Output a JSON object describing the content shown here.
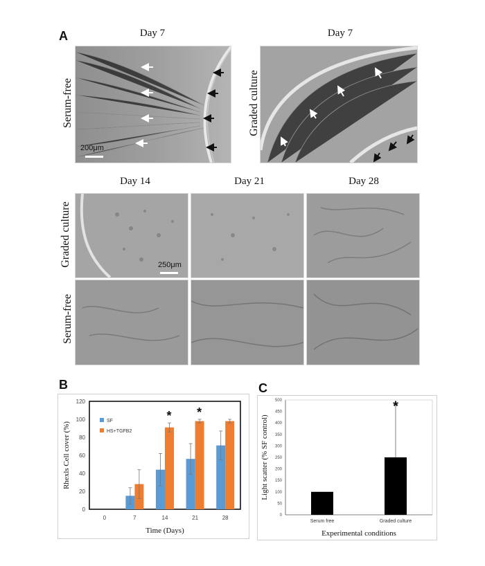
{
  "panel_a": {
    "letter": "A",
    "top_day_left": "Day 7",
    "top_day_right": "Day 7",
    "row_serum_free_top": "Serum-free",
    "row_graded_top": "Graded culture",
    "scale_top": "200μm",
    "bottom_days": [
      "Day 14",
      "Day 21",
      "Day 28"
    ],
    "row_graded_bottom": "Graded culture",
    "row_serum_free_bottom": "Serum-free",
    "scale_bottom": "250μm",
    "images": [
      "phase-contrast-micrograph",
      "phase-contrast-micrograph"
    ],
    "arrow_colors": {
      "white": "#ffffff",
      "black": "#111111"
    }
  },
  "panel_b": {
    "letter": "B"
  },
  "panel_c": {
    "letter": "C"
  },
  "chart_data": [
    {
      "type": "bar",
      "panel": "B",
      "categories": [
        "0",
        "7",
        "14",
        "21",
        "28"
      ],
      "series": [
        {
          "name": "SF",
          "color": "#5b9bd5",
          "values": [
            0,
            15,
            44,
            56,
            71
          ],
          "errors": [
            0,
            9,
            18,
            17,
            16
          ]
        },
        {
          "name": "HS+TGFB2",
          "color": "#ed7d31",
          "values": [
            0,
            28,
            91,
            98,
            98
          ],
          "errors": [
            0,
            16,
            5,
            2,
            2
          ]
        }
      ],
      "significance": [
        "",
        "",
        "*",
        "*",
        ""
      ],
      "xlabel": "Time (Days)",
      "ylabel": "Rhexls Cell cover (%)",
      "ylim": [
        0,
        120
      ],
      "yticks": [
        "0",
        "20",
        "40",
        "60",
        "80",
        "100",
        "120"
      ],
      "legend_position": "top-left"
    },
    {
      "type": "bar",
      "panel": "C",
      "categories": [
        "Serum free",
        "Graded culture"
      ],
      "values": [
        100,
        250
      ],
      "errors": [
        0,
        230
      ],
      "significance": [
        "",
        "*"
      ],
      "color": "#000000",
      "xlabel": "Experimental conditions",
      "ylabel": "Light scatter (% SF control)",
      "ylim": [
        0,
        500
      ],
      "yticks": [
        "0",
        "50",
        "100",
        "150",
        "200",
        "250",
        "300",
        "350",
        "400",
        "450",
        "500"
      ]
    }
  ]
}
